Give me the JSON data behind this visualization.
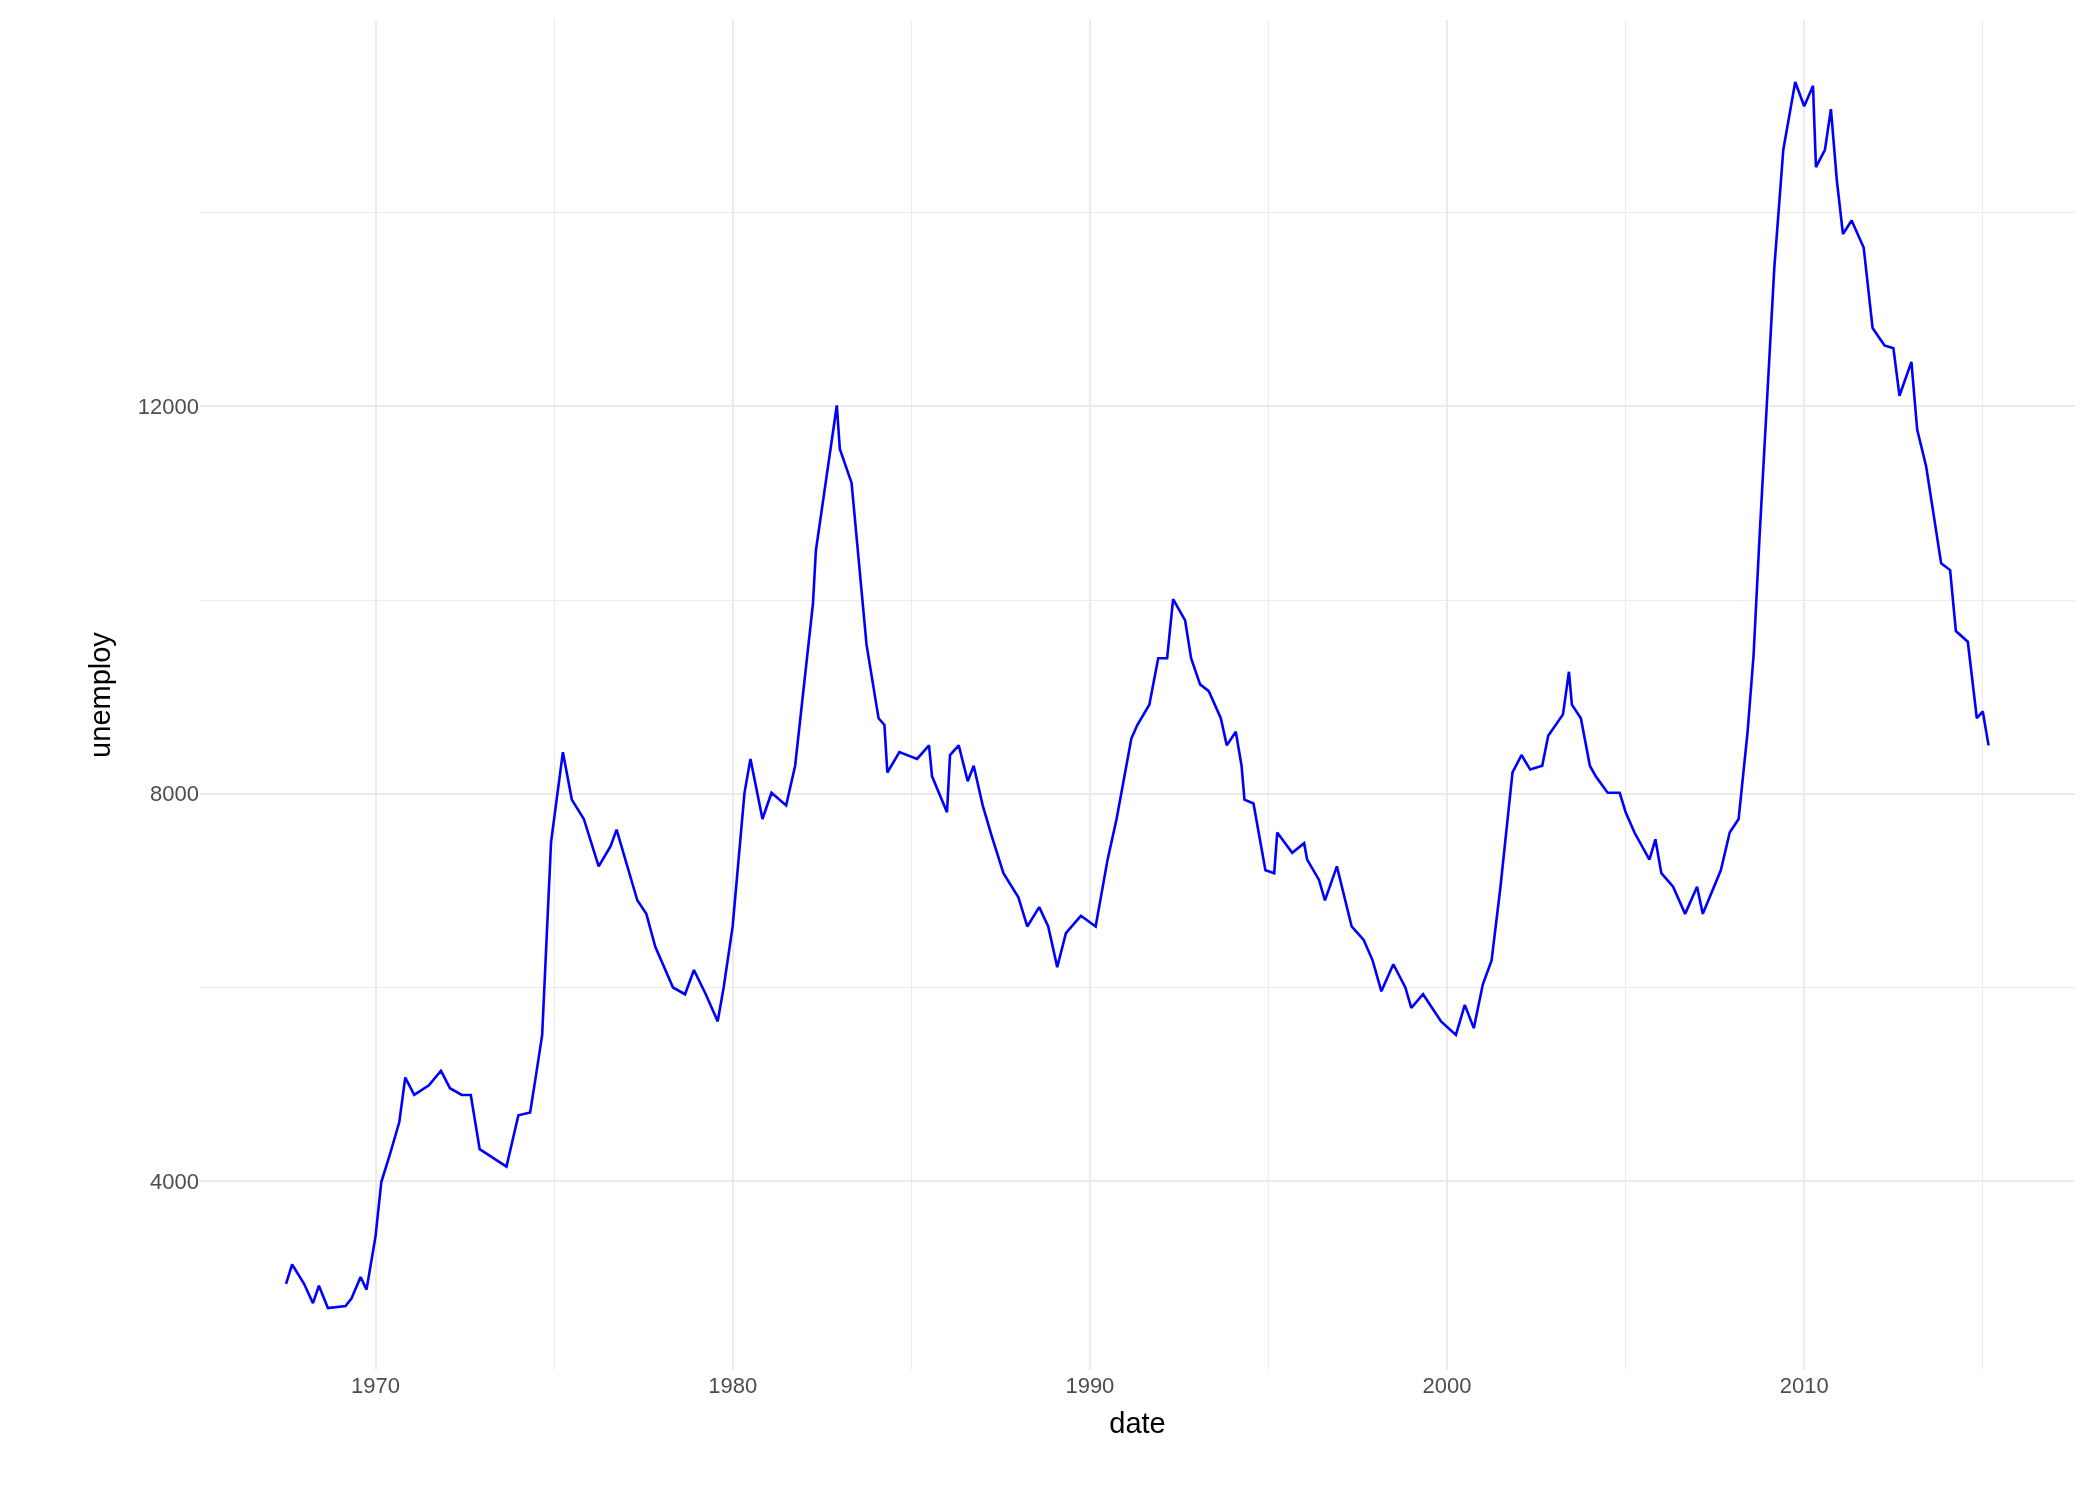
{
  "chart_data": {
    "type": "line",
    "xlabel": "date",
    "ylabel": "unemploy",
    "x": [
      "1967-07",
      "1967-09",
      "1968-01",
      "1968-04",
      "1968-06",
      "1968-09",
      "1969-03",
      "1969-05",
      "1969-08",
      "1969-10",
      "1970-01",
      "1970-03",
      "1970-06",
      "1970-09",
      "1970-11",
      "1971-02",
      "1971-07",
      "1971-11",
      "1972-02",
      "1972-06",
      "1972-09",
      "1972-12",
      "1973-09",
      "1974-01",
      "1974-05",
      "1974-07",
      "1974-09",
      "1974-12",
      "1975-04",
      "1975-07",
      "1975-11",
      "1976-04",
      "1976-08",
      "1976-10",
      "1977-05",
      "1977-08",
      "1977-11",
      "1978-05",
      "1978-09",
      "1978-12",
      "1979-04",
      "1979-08",
      "1979-10",
      "1980-01",
      "1980-05",
      "1980-07",
      "1980-11",
      "1981-02",
      "1981-07",
      "1981-10",
      "1982-04",
      "1982-05",
      "1982-12",
      "1983-01",
      "1983-05",
      "1983-10",
      "1984-02",
      "1984-04",
      "1984-05",
      "1984-09",
      "1985-03",
      "1985-07",
      "1985-08",
      "1986-01",
      "1986-02",
      "1986-05",
      "1986-08",
      "1986-10",
      "1987-01",
      "1987-04",
      "1987-08",
      "1988-01",
      "1988-04",
      "1988-08",
      "1988-11",
      "1989-02",
      "1989-05",
      "1989-10",
      "1990-03",
      "1990-07",
      "1990-10",
      "1991-03",
      "1991-05",
      "1991-09",
      "1991-12",
      "1992-03",
      "1992-05",
      "1992-09",
      "1992-11",
      "1993-02",
      "1993-05",
      "1993-09",
      "1993-11",
      "1994-02",
      "1994-04",
      "1994-05",
      "1994-08",
      "1994-12",
      "1995-03",
      "1995-04",
      "1995-09",
      "1996-01",
      "1996-02",
      "1996-06",
      "1996-08",
      "1996-12",
      "1997-05",
      "1997-09",
      "1997-12",
      "1998-03",
      "1998-07",
      "1998-11",
      "1999-01",
      "1999-05",
      "1999-11",
      "2000-04",
      "2000-07",
      "2000-10",
      "2001-01",
      "2001-04",
      "2001-07",
      "2001-11",
      "2002-02",
      "2002-05",
      "2002-09",
      "2002-11",
      "2003-04",
      "2003-06",
      "2003-07",
      "2003-10",
      "2004-01",
      "2004-03",
      "2004-07",
      "2004-11",
      "2005-01",
      "2005-04",
      "2005-09",
      "2005-11",
      "2006-01",
      "2006-05",
      "2006-09",
      "2007-01",
      "2007-03",
      "2007-09",
      "2007-12",
      "2008-03",
      "2008-06",
      "2008-08",
      "2008-10",
      "2009-03",
      "2009-06",
      "2009-10",
      "2010-01",
      "2010-04",
      "2010-05",
      "2010-08",
      "2010-10",
      "2010-12",
      "2011-02",
      "2011-05",
      "2011-09",
      "2011-12",
      "2012-04",
      "2012-07",
      "2012-09",
      "2013-01",
      "2013-03",
      "2013-06",
      "2013-11",
      "2014-02",
      "2014-04",
      "2014-08",
      "2014-11",
      "2015-01",
      "2015-03"
    ],
    "values": [
      2940,
      3140,
      2940,
      2740,
      2920,
      2690,
      2710,
      2790,
      3010,
      2880,
      3430,
      3990,
      4290,
      4610,
      5070,
      4890,
      4990,
      5140,
      4960,
      4890,
      4890,
      4330,
      4150,
      4680,
      4710,
      5100,
      5510,
      7500,
      8430,
      7940,
      7740,
      7250,
      7460,
      7630,
      6900,
      6760,
      6420,
      6000,
      5930,
      6180,
      5930,
      5650,
      6000,
      6630,
      8010,
      8360,
      7740,
      8010,
      7880,
      8290,
      9960,
      10510,
      12010,
      11560,
      11210,
      9540,
      8780,
      8710,
      8220,
      8430,
      8360,
      8500,
      8180,
      7810,
      8400,
      8500,
      8130,
      8290,
      7880,
      7570,
      7180,
      6930,
      6630,
      6830,
      6630,
      6210,
      6560,
      6740,
      6630,
      7320,
      7740,
      8570,
      8710,
      8920,
      9400,
      9400,
      10010,
      9790,
      9400,
      9130,
      9060,
      8780,
      8500,
      8640,
      8290,
      7940,
      7900,
      7210,
      7180,
      7600,
      7390,
      7490,
      7320,
      7110,
      6900,
      7250,
      6630,
      6490,
      6280,
      5960,
      6240,
      6000,
      5790,
      5930,
      5650,
      5510,
      5820,
      5580,
      6030,
      6280,
      7040,
      8220,
      8400,
      8250,
      8290,
      8600,
      8820,
      9260,
      8920,
      8780,
      8290,
      8180,
      8010,
      8010,
      7810,
      7600,
      7320,
      7530,
      7180,
      7040,
      6760,
      7040,
      6760,
      7210,
      7600,
      7740,
      8640,
      9430,
      10650,
      13430,
      14650,
      15350,
      15100,
      15310,
      14470,
      14650,
      15070,
      14330,
      13780,
      13920,
      13640,
      12810,
      12630,
      12600,
      12110,
      12460,
      11760,
      11380,
      10380,
      10310,
      9680,
      9570,
      8780,
      8850,
      8500
    ],
    "color": "#0000ff",
    "xlim": [
      "1965-02",
      "2017-08"
    ],
    "xticks": [
      "1970",
      "1980",
      "1990",
      "2000",
      "2010"
    ],
    "ylim": [
      2050,
      15990
    ],
    "yticks": [
      4000,
      8000,
      12000
    ],
    "grid": true
  }
}
